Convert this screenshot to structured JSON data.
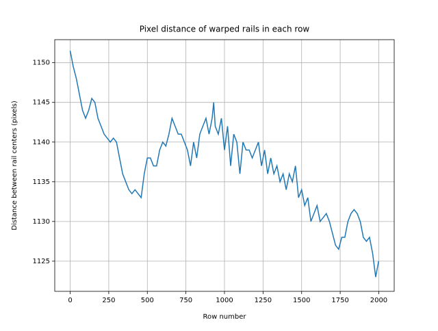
{
  "chart_data": {
    "type": "line",
    "title": "Pixel distance of warped rails in each row",
    "x_label": "Row number",
    "y_label": "Distance between rail centers (pixels)",
    "x": [
      0,
      20,
      40,
      60,
      80,
      100,
      120,
      140,
      160,
      180,
      200,
      220,
      240,
      260,
      280,
      300,
      320,
      340,
      360,
      380,
      400,
      420,
      440,
      460,
      480,
      500,
      520,
      540,
      560,
      580,
      600,
      620,
      640,
      660,
      680,
      700,
      720,
      740,
      760,
      780,
      800,
      820,
      840,
      860,
      880,
      900,
      920,
      930,
      940,
      960,
      980,
      1000,
      1020,
      1040,
      1060,
      1080,
      1100,
      1120,
      1140,
      1160,
      1180,
      1200,
      1220,
      1240,
      1260,
      1280,
      1300,
      1320,
      1340,
      1360,
      1380,
      1400,
      1420,
      1440,
      1460,
      1480,
      1500,
      1520,
      1540,
      1560,
      1580,
      1600,
      1620,
      1640,
      1660,
      1680,
      1700,
      1720,
      1740,
      1760,
      1780,
      1800,
      1820,
      1840,
      1860,
      1880,
      1900,
      1920,
      1940,
      1960,
      1980,
      1999
    ],
    "values": [
      1151.5,
      1149.5,
      1148,
      1146,
      1144,
      1143,
      1144,
      1145.5,
      1145,
      1143,
      1142,
      1141,
      1140.5,
      1140,
      1140.5,
      1140,
      1138,
      1136,
      1135,
      1134,
      1133.5,
      1134,
      1133.5,
      1133,
      1136,
      1138,
      1138,
      1137,
      1137,
      1139,
      1140,
      1139.5,
      1141,
      1143,
      1142,
      1141,
      1141,
      1140,
      1139,
      1137,
      1140,
      1138,
      1141,
      1142,
      1143,
      1141,
      1143,
      1145,
      1142,
      1141,
      1143,
      1139,
      1142,
      1137,
      1141,
      1140,
      1136,
      1140,
      1139,
      1139,
      1138,
      1139,
      1140,
      1137,
      1139,
      1136,
      1138,
      1136,
      1137,
      1135,
      1136,
      1134,
      1136,
      1135,
      1137,
      1133,
      1134,
      1132,
      1133,
      1130,
      1131,
      1132,
      1130,
      1130.5,
      1131,
      1130,
      1128.5,
      1127,
      1126.5,
      1128,
      1128,
      1130,
      1131,
      1131.5,
      1131,
      1130,
      1128,
      1127.5,
      1128,
      1126,
      1123,
      1125
    ],
    "color": "#1f77b4",
    "xlim": [
      -100,
      2100
    ],
    "ylim": [
      1121.2,
      1152.9
    ],
    "xticks": [
      0,
      250,
      500,
      750,
      1000,
      1250,
      1500,
      1750,
      2000
    ],
    "yticks": [
      1125,
      1130,
      1135,
      1140,
      1145,
      1150
    ],
    "grid": true
  }
}
